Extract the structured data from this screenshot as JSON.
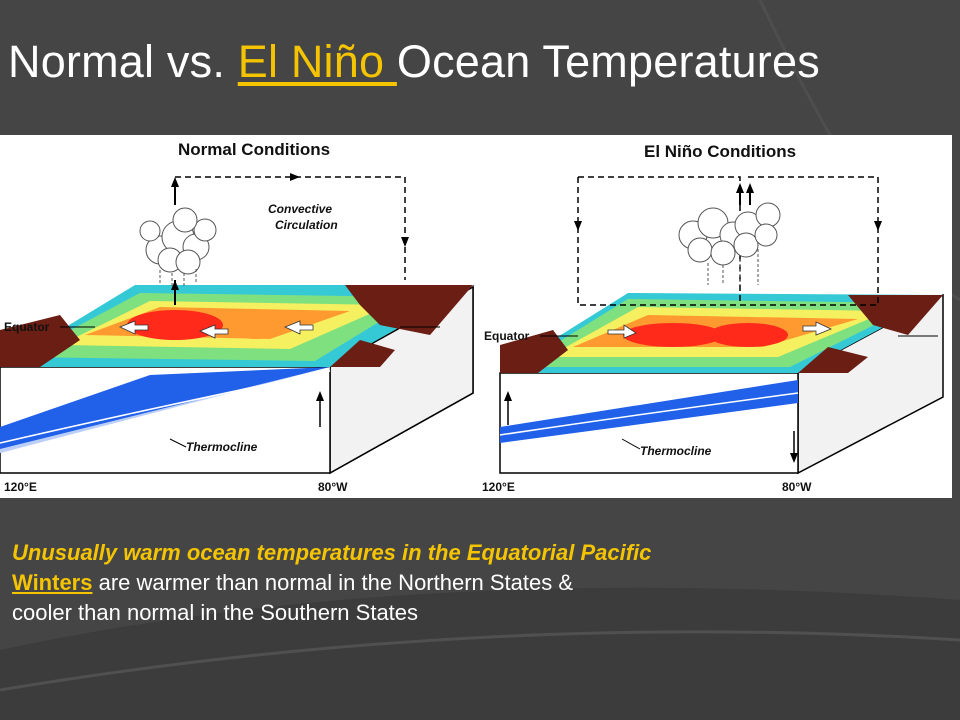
{
  "title": {
    "part1": "Normal vs. ",
    "link": "El Niño ",
    "part2": "Ocean Temperatures"
  },
  "panels": {
    "normal": {
      "title": "Normal Conditions",
      "circulation": [
        "Convective",
        "Circulation"
      ],
      "equator": "Equator",
      "thermocline": "Thermocline",
      "left_lon": "120°E",
      "right_lon": "80°W"
    },
    "elnino": {
      "title": "El Niño Conditions",
      "equator": "Equator",
      "thermocline": "Thermocline",
      "left_lon": "120°E",
      "right_lon": "80°W"
    }
  },
  "caption": {
    "line1": "Unusually warm ocean temperatures in the Equatorial Pacific",
    "link": "Winters",
    "line2": " are warmer than normal in the Northern States &",
    "line3": "cooler than normal in the Southern States"
  },
  "colors": {
    "background": "#454545",
    "accent": "#f5c400",
    "land": "#6b1e14",
    "warm_core": "#ff2a1a",
    "ocean_deep": "#1f5fe6"
  }
}
